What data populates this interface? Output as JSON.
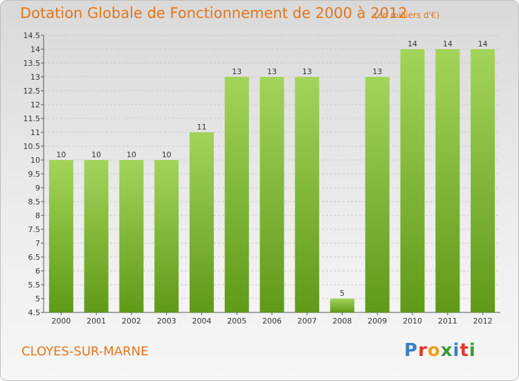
{
  "title": "Dotation Globale de Fonctionnement de 2000 à 2012",
  "unit_note": "(en milliers d'€)",
  "commune": "CLOYES-SUR-MARNE",
  "logo": {
    "letters": [
      "P",
      "r",
      "o",
      "x",
      "i",
      "t",
      "i"
    ],
    "colors": [
      "#3a7fc4",
      "#e23b2a",
      "#f0a020",
      "#3a9b3a",
      "#3a7fc4",
      "#e23b2a",
      "#3a9b3a"
    ]
  },
  "colors": {
    "accent": "#e2761a",
    "bar_top": "#a3d45a",
    "bar_bottom": "#5f9a18"
  },
  "chart_data": {
    "type": "bar",
    "categories": [
      "2000",
      "2001",
      "2002",
      "2003",
      "2004",
      "2005",
      "2006",
      "2007",
      "2008",
      "2009",
      "2010",
      "2011",
      "2012"
    ],
    "values": [
      10,
      10,
      10,
      10,
      11,
      13,
      13,
      13,
      5,
      13,
      14,
      14,
      14
    ],
    "value_labels": [
      "10",
      "10",
      "10",
      "10",
      "11",
      "13",
      "13",
      "13",
      "5",
      "13",
      "14",
      "14",
      "14"
    ],
    "ylim": [
      4.5,
      14.5
    ],
    "yticks": [
      4.5,
      5,
      5.5,
      6,
      6.5,
      7,
      7.5,
      8,
      8.5,
      9,
      9.5,
      10,
      10.5,
      11,
      11.5,
      12,
      12.5,
      13,
      13.5,
      14,
      14.5
    ],
    "ytick_labels": [
      "4.5",
      "5",
      "5.5",
      "6",
      "6.5",
      "7",
      "7.5",
      "8",
      "8.5",
      "9",
      "9.5",
      "10",
      "10.5",
      "11",
      "11.5",
      "12",
      "12.5",
      "13",
      "13.5",
      "14",
      "14.5"
    ],
    "grid": true
  }
}
